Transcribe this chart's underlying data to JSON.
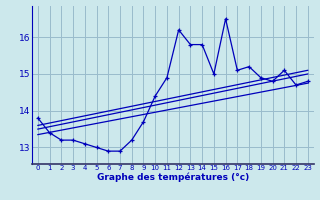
{
  "x": [
    0,
    1,
    2,
    3,
    4,
    5,
    6,
    7,
    8,
    9,
    10,
    11,
    12,
    13,
    14,
    15,
    16,
    17,
    18,
    19,
    20,
    21,
    22,
    23
  ],
  "y": [
    13.8,
    13.4,
    13.2,
    13.2,
    13.1,
    13.0,
    12.9,
    12.9,
    13.2,
    13.7,
    14.4,
    14.9,
    16.2,
    15.8,
    15.8,
    15.0,
    16.5,
    15.1,
    15.2,
    14.9,
    14.8,
    15.1,
    14.7,
    14.8
  ],
  "trend1_x": [
    0,
    23
  ],
  "trend1_y": [
    13.35,
    14.75
  ],
  "trend2_x": [
    0,
    23
  ],
  "trend2_y": [
    13.5,
    15.0
  ],
  "trend3_x": [
    0,
    23
  ],
  "trend3_y": [
    13.6,
    15.1
  ],
  "xlim": [
    -0.5,
    23.5
  ],
  "ylim": [
    12.55,
    16.85
  ],
  "yticks": [
    13,
    14,
    15,
    16
  ],
  "xticks": [
    0,
    1,
    2,
    3,
    4,
    5,
    6,
    7,
    8,
    9,
    10,
    11,
    12,
    13,
    14,
    15,
    16,
    17,
    18,
    19,
    20,
    21,
    22,
    23
  ],
  "xlabel": "Graphe des températures (°c)",
  "line_color": "#0000bb",
  "bg_color": "#cce8ec",
  "grid_color": "#99bbcc",
  "title": ""
}
